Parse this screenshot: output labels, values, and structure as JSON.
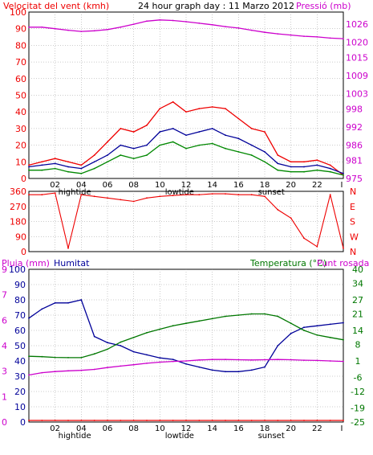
{
  "header": {
    "left_title": "Velocitat del vent (kmh)",
    "center_title": "24 hour graph day : 11 Marzo 2012",
    "right_title": "Pressió (mb)"
  },
  "colors": {
    "wind": "#ee0000",
    "gust_avg": "#000099",
    "wind_green": "#008800",
    "pressure": "#cc00cc",
    "direction": "#ee0000",
    "humidity": "#000099",
    "temperature": "#007700",
    "dewpoint": "#cc00cc",
    "rain": "#ee0000",
    "axis": "#000000",
    "grid": "#999999"
  },
  "time_axis": {
    "ticks": [
      "02",
      "04",
      "06",
      "08",
      "10",
      "12",
      "14",
      "16",
      "18",
      "20",
      "22",
      "I"
    ],
    "events": [
      "hightide",
      "lowtide",
      "sunset"
    ]
  },
  "chart_data": [
    {
      "type": "line",
      "title": "Velocitat del vent (kmh)",
      "right_title": "Pressió (mb)",
      "ylim": [
        0,
        100
      ],
      "yticks": [
        0,
        10,
        20,
        30,
        40,
        50,
        60,
        70,
        80,
        90,
        100
      ],
      "y2lim": [
        975,
        1030
      ],
      "y2ticks": [
        975,
        981,
        986,
        992,
        998,
        1003,
        1009,
        1015,
        1020,
        1026
      ],
      "x": [
        0,
        1,
        2,
        3,
        4,
        5,
        6,
        7,
        8,
        9,
        10,
        11,
        12,
        13,
        14,
        15,
        16,
        17,
        18,
        19,
        20,
        21,
        22,
        23,
        24
      ],
      "series": [
        {
          "key": "wind_red",
          "axis": "left",
          "values": [
            8,
            10,
            12,
            10,
            8,
            14,
            22,
            30,
            28,
            32,
            42,
            46,
            40,
            42,
            43,
            42,
            36,
            30,
            28,
            14,
            10,
            10,
            11,
            8,
            2
          ]
        },
        {
          "key": "wind_blue",
          "axis": "left",
          "values": [
            7,
            8,
            9,
            7,
            6,
            10,
            14,
            20,
            18,
            20,
            28,
            30,
            26,
            28,
            30,
            26,
            24,
            20,
            16,
            9,
            7,
            7,
            8,
            6,
            3
          ]
        },
        {
          "key": "wind_green",
          "axis": "left",
          "values": [
            5,
            5,
            6,
            4,
            3,
            6,
            10,
            14,
            12,
            14,
            20,
            22,
            18,
            20,
            21,
            18,
            16,
            14,
            10,
            5,
            4,
            4,
            5,
            4,
            2
          ]
        },
        {
          "key": "pressure",
          "axis": "right",
          "values": [
            1025,
            1025,
            1024.5,
            1024,
            1023.6,
            1023.8,
            1024.2,
            1025,
            1026,
            1027,
            1027.4,
            1027.2,
            1026.8,
            1026.3,
            1025.8,
            1025.2,
            1024.7,
            1024,
            1023.3,
            1022.8,
            1022.4,
            1022,
            1021.8,
            1021.4,
            1021.2
          ]
        }
      ]
    },
    {
      "type": "line",
      "title": "Wind direction",
      "ylim": [
        0,
        360
      ],
      "yticks": [
        0,
        90,
        180,
        270,
        360
      ],
      "y2ticks": [
        "N",
        "W",
        "S",
        "E",
        "N"
      ],
      "x": [
        0,
        1,
        2,
        3,
        4,
        5,
        6,
        7,
        8,
        9,
        10,
        11,
        12,
        13,
        14,
        15,
        16,
        17,
        18,
        19,
        20,
        21,
        22,
        23,
        24
      ],
      "series": [
        {
          "key": "direction",
          "values": [
            340,
            340,
            350,
            20,
            340,
            330,
            320,
            310,
            300,
            320,
            330,
            335,
            340,
            340,
            345,
            345,
            340,
            340,
            330,
            250,
            200,
            80,
            30,
            340,
            20
          ]
        }
      ]
    },
    {
      "type": "line",
      "left_title": "Pluja (mm)",
      "humidity_label": "Humitat",
      "right_title": "Temperatura (°C)",
      "right_title2": "Punt rosada",
      "ylim": [
        0,
        100
      ],
      "yticks": [
        0,
        10,
        20,
        30,
        40,
        50,
        60,
        70,
        80,
        90,
        100
      ],
      "y_rain_ticks": [
        0,
        1,
        3,
        4,
        6,
        7,
        9
      ],
      "y2lim": [
        -25,
        40
      ],
      "y2ticks": [
        -25,
        -19,
        -12,
        -6,
        1,
        8,
        14,
        21,
        27,
        34,
        40
      ],
      "x": [
        0,
        1,
        2,
        3,
        4,
        5,
        6,
        7,
        8,
        9,
        10,
        11,
        12,
        13,
        14,
        15,
        16,
        17,
        18,
        19,
        20,
        21,
        22,
        23,
        24
      ],
      "series": [
        {
          "key": "humidity",
          "axis": "left",
          "values": [
            68,
            74,
            78,
            78,
            80,
            56,
            52,
            50,
            46,
            44,
            42,
            41,
            38,
            36,
            34,
            33,
            33,
            34,
            36,
            50,
            58,
            62,
            63,
            64,
            65
          ]
        },
        {
          "key": "temperature",
          "axis": "right",
          "values": [
            3,
            2.8,
            2.5,
            2.4,
            2.4,
            4,
            6,
            9,
            11,
            13,
            14.5,
            16,
            17,
            18,
            19,
            20,
            20.5,
            21,
            21,
            20,
            17,
            14,
            12,
            11,
            10
          ]
        },
        {
          "key": "dewpoint",
          "axis": "right",
          "values": [
            -5,
            -4,
            -3.5,
            -3.2,
            -3,
            -2.6,
            -1.8,
            -1.2,
            -0.6,
            0,
            0.5,
            0.8,
            1,
            1.4,
            1.6,
            1.6,
            1.5,
            1.4,
            1.5,
            1.6,
            1.5,
            1.3,
            1.2,
            1,
            0.8
          ]
        },
        {
          "key": "rain",
          "axis": "rain",
          "values": [
            0,
            0,
            0,
            0,
            0,
            0,
            0,
            0,
            0,
            0,
            0,
            0,
            0,
            0,
            0,
            0,
            0,
            0,
            0,
            0,
            0,
            0,
            0,
            0,
            0
          ]
        }
      ]
    }
  ]
}
